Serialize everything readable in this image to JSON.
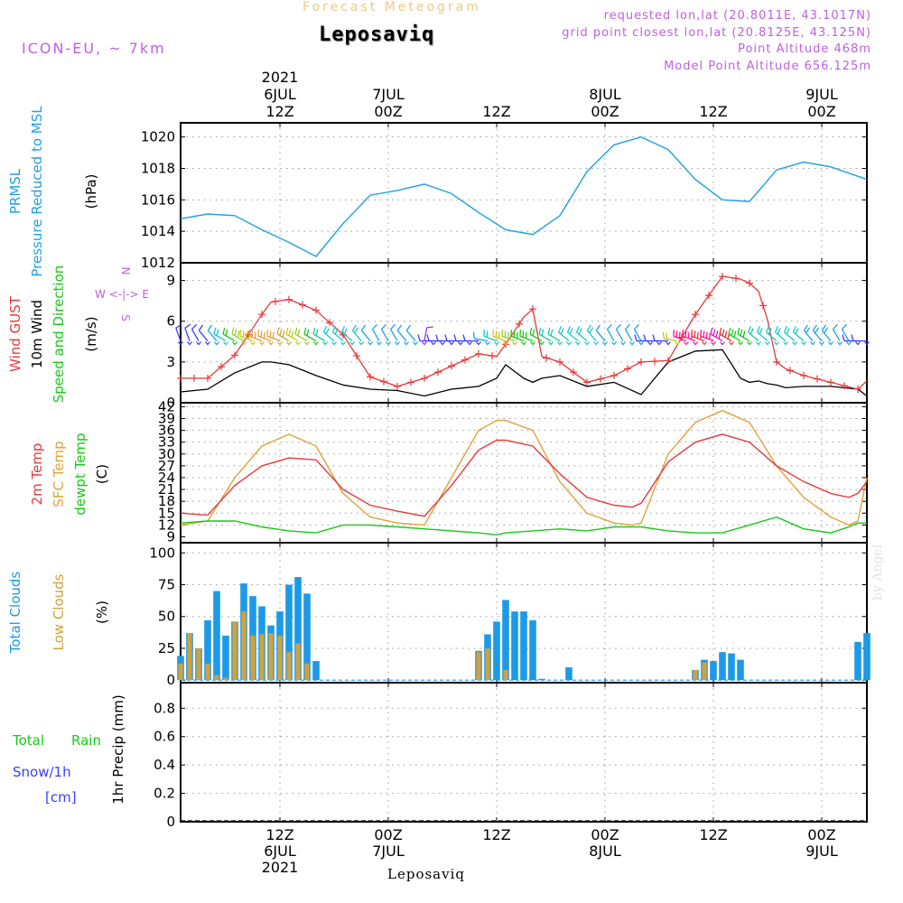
{
  "header": {
    "model": "ICON-EU, ~ 7km",
    "chart_title": "Forecast Meteogram",
    "place": "Leposaviq",
    "requested": "requested lon,lat (20.8011E, 43.1017N)",
    "grid_point": "grid point closest lon,lat (20.8125E, 43.125N)",
    "point_altitude": "Point Altitude 468m",
    "model_altitude": "Model Point Altitude 656.125m",
    "watermark": "by Angel"
  },
  "colors": {
    "pressure": "#1ea0e6",
    "gust": "#e8383a",
    "wind": "#000000",
    "temp": "#e8383a",
    "sfc": "#e0a23a",
    "dew": "#19c819",
    "total_clouds": "#1c9ae8",
    "low_clouds": "#d2a13c",
    "rain": "#19c819",
    "snow": "#3c3cff",
    "purple": "#bf5fdf"
  },
  "chart_data": [
    {
      "type": "line",
      "title": "PRMSL Pressure Reduced to MSL",
      "ylabel": "(hPa)",
      "ylim": [
        1012,
        1020.9
      ],
      "yticks": [
        1012,
        1014,
        1016,
        1018,
        1020
      ],
      "x_hours": [
        0,
        3,
        6,
        9,
        12,
        15,
        18,
        21,
        24,
        27,
        30,
        33,
        36,
        39,
        42,
        45,
        48,
        51,
        54,
        57,
        60,
        63,
        66,
        69,
        72,
        75,
        76
      ],
      "series": [
        {
          "name": "PRMSL",
          "values": [
            1014.8,
            1015.1,
            1015.0,
            1014.1,
            1013.3,
            1012.4,
            1014.5,
            1016.3,
            1016.6,
            1017.0,
            1016.4,
            1015.2,
            1014.1,
            1013.8,
            1015.0,
            1017.8,
            1019.5,
            1020.0,
            1019.2,
            1017.3,
            1016.0,
            1015.9,
            1017.9,
            1018.4,
            1018.1,
            1017.5,
            1017.3
          ]
        }
      ]
    },
    {
      "type": "line",
      "title": "Wind GUST / 10m Wind Speed and Direction",
      "ylabel": "(m/s)",
      "ylim": [
        0,
        10.3
      ],
      "yticks": [
        0,
        3,
        6,
        9
      ],
      "compass": [
        "N",
        "W <-|-> E",
        "S"
      ],
      "x_hours": [
        0,
        3,
        6,
        9,
        10,
        12,
        15,
        18,
        21,
        24,
        27,
        30,
        33,
        35,
        36,
        38,
        39,
        40,
        42,
        45,
        48,
        51,
        54,
        57,
        60,
        62,
        63,
        64,
        65,
        66,
        67,
        69,
        72,
        75,
        76
      ],
      "series": [
        {
          "name": "Wind GUST",
          "values": [
            1.8,
            1.8,
            3.5,
            6.5,
            7.4,
            7.6,
            6.8,
            5.0,
            1.9,
            1.2,
            1.8,
            2.7,
            3.6,
            3.4,
            4.3,
            6.3,
            6.9,
            3.4,
            3.0,
            1.5,
            2.0,
            3.0,
            3.1,
            6.5,
            9.3,
            9.1,
            8.8,
            8.2,
            6.1,
            3.0,
            2.5,
            2.0,
            1.5,
            1.0,
            1.6
          ]
        },
        {
          "name": "10m Wind",
          "values": [
            0.8,
            1.0,
            2.2,
            3.0,
            3.0,
            2.8,
            2.0,
            1.3,
            1.0,
            0.9,
            0.5,
            1.0,
            1.2,
            1.8,
            2.8,
            1.8,
            1.5,
            1.8,
            2.0,
            1.2,
            1.5,
            0.6,
            3.0,
            3.8,
            3.9,
            1.8,
            1.5,
            1.6,
            1.4,
            1.3,
            1.1,
            1.2,
            1.2,
            1.0,
            0.5
          ]
        }
      ],
      "barbs": [
        {
          "h": 0,
          "dir": 340,
          "spd": 1,
          "c": "#3c3cff"
        },
        {
          "h": 1,
          "dir": 340,
          "spd": 1,
          "c": "#3c3cff"
        },
        {
          "h": 2,
          "dir": 330,
          "spd": 1,
          "c": "#3c3cff"
        },
        {
          "h": 3,
          "dir": 320,
          "spd": 1,
          "c": "#3c3cff"
        },
        {
          "h": 4,
          "dir": 320,
          "spd": 1,
          "c": "#1ea0e6"
        },
        {
          "h": 5,
          "dir": 300,
          "spd": 2,
          "c": "#19c8c8"
        },
        {
          "h": 6,
          "dir": 300,
          "spd": 2,
          "c": "#19c819"
        },
        {
          "h": 7,
          "dir": 300,
          "spd": 3,
          "c": "#9acd32"
        },
        {
          "h": 8,
          "dir": 290,
          "spd": 3,
          "c": "#c8c819"
        },
        {
          "h": 9,
          "dir": 290,
          "spd": 3,
          "c": "#e0a23a"
        },
        {
          "h": 10,
          "dir": 290,
          "spd": 3,
          "c": "#e0a23a"
        },
        {
          "h": 11,
          "dir": 290,
          "spd": 3,
          "c": "#e0a23a"
        },
        {
          "h": 12,
          "dir": 300,
          "spd": 3,
          "c": "#d2a13c"
        },
        {
          "h": 13,
          "dir": 300,
          "spd": 3,
          "c": "#c8c819"
        },
        {
          "h": 14,
          "dir": 300,
          "spd": 2,
          "c": "#9acd32"
        },
        {
          "h": 15,
          "dir": 300,
          "spd": 2,
          "c": "#19c819"
        },
        {
          "h": 16,
          "dir": 300,
          "spd": 2,
          "c": "#19c8a0"
        },
        {
          "h": 17,
          "dir": 310,
          "spd": 2,
          "c": "#19c8c8"
        },
        {
          "h": 18,
          "dir": 310,
          "spd": 2,
          "c": "#19c8c8"
        },
        {
          "h": 19,
          "dir": 310,
          "spd": 2,
          "c": "#19c8c8"
        },
        {
          "h": 20,
          "dir": 320,
          "spd": 2,
          "c": "#19c8c8"
        },
        {
          "h": 21,
          "dir": 320,
          "spd": 1,
          "c": "#1ea0e6"
        },
        {
          "h": 22,
          "dir": 330,
          "spd": 1,
          "c": "#1ea0e6"
        },
        {
          "h": 23,
          "dir": 330,
          "spd": 1,
          "c": "#1ea0e6"
        },
        {
          "h": 24,
          "dir": 330,
          "spd": 1,
          "c": "#1ea0e6"
        },
        {
          "h": 25,
          "dir": 320,
          "spd": 1,
          "c": "#1ea0e6"
        },
        {
          "h": 26,
          "dir": 320,
          "spd": 1,
          "c": "#1ea0e6"
        },
        {
          "h": 27,
          "dir": 10,
          "spd": 1,
          "c": "#9b30ff"
        },
        {
          "h": 28,
          "dir": 270,
          "spd": 1,
          "c": "#3c3cff"
        },
        {
          "h": 29,
          "dir": 270,
          "spd": 1,
          "c": "#3c3cff"
        },
        {
          "h": 30,
          "dir": 270,
          "spd": 1,
          "c": "#3c3cff"
        },
        {
          "h": 31,
          "dir": 270,
          "spd": 1,
          "c": "#3c3cff"
        },
        {
          "h": 32,
          "dir": 270,
          "spd": 1,
          "c": "#3c3cff"
        },
        {
          "h": 33,
          "dir": 270,
          "spd": 1,
          "c": "#3c3cff"
        },
        {
          "h": 34,
          "dir": 280,
          "spd": 1,
          "c": "#1ea0e6"
        },
        {
          "h": 35,
          "dir": 290,
          "spd": 2,
          "c": "#19c8c8"
        },
        {
          "h": 36,
          "dir": 290,
          "spd": 3,
          "c": "#c8c819"
        },
        {
          "h": 37,
          "dir": 290,
          "spd": 3,
          "c": "#9acd32"
        },
        {
          "h": 38,
          "dir": 290,
          "spd": 3,
          "c": "#19c819"
        },
        {
          "h": 39,
          "dir": 290,
          "spd": 3,
          "c": "#19c819"
        },
        {
          "h": 40,
          "dir": 300,
          "spd": 2,
          "c": "#19c819"
        },
        {
          "h": 41,
          "dir": 300,
          "spd": 2,
          "c": "#19c8a0"
        },
        {
          "h": 42,
          "dir": 300,
          "spd": 2,
          "c": "#19c8a0"
        },
        {
          "h": 43,
          "dir": 310,
          "spd": 2,
          "c": "#19c8c8"
        },
        {
          "h": 44,
          "dir": 310,
          "spd": 2,
          "c": "#19c8c8"
        },
        {
          "h": 45,
          "dir": 310,
          "spd": 2,
          "c": "#19c8c8"
        },
        {
          "h": 46,
          "dir": 320,
          "spd": 2,
          "c": "#19c8c8"
        },
        {
          "h": 47,
          "dir": 320,
          "spd": 1,
          "c": "#1ea0e6"
        },
        {
          "h": 48,
          "dir": 330,
          "spd": 1,
          "c": "#1ea0e6"
        },
        {
          "h": 49,
          "dir": 330,
          "spd": 1,
          "c": "#1ea0e6"
        },
        {
          "h": 50,
          "dir": 330,
          "spd": 1,
          "c": "#1ea0e6"
        },
        {
          "h": 51,
          "dir": 330,
          "spd": 1,
          "c": "#1ea0e6"
        },
        {
          "h": 52,
          "dir": 270,
          "spd": 1,
          "c": "#3c3cff"
        },
        {
          "h": 53,
          "dir": 270,
          "spd": 1,
          "c": "#3c3cff"
        },
        {
          "h": 54,
          "dir": 270,
          "spd": 1,
          "c": "#3c3cff"
        },
        {
          "h": 55,
          "dir": 280,
          "spd": 2,
          "c": "#c8c819"
        },
        {
          "h": 56,
          "dir": 290,
          "spd": 3,
          "c": "#ff1493"
        },
        {
          "h": 57,
          "dir": 290,
          "spd": 4,
          "c": "#ff1493"
        },
        {
          "h": 58,
          "dir": 290,
          "spd": 4,
          "c": "#e8383a"
        },
        {
          "h": 59,
          "dir": 290,
          "spd": 4,
          "c": "#ff1493"
        },
        {
          "h": 60,
          "dir": 300,
          "spd": 4,
          "c": "#c820c8"
        },
        {
          "h": 61,
          "dir": 300,
          "spd": 4,
          "c": "#e8383a"
        },
        {
          "h": 62,
          "dir": 300,
          "spd": 3,
          "c": "#19c819"
        },
        {
          "h": 63,
          "dir": 300,
          "spd": 3,
          "c": "#19c819"
        },
        {
          "h": 64,
          "dir": 310,
          "spd": 2,
          "c": "#19c8a0"
        },
        {
          "h": 65,
          "dir": 310,
          "spd": 2,
          "c": "#19c8c8"
        },
        {
          "h": 66,
          "dir": 310,
          "spd": 2,
          "c": "#19c8c8"
        },
        {
          "h": 67,
          "dir": 310,
          "spd": 2,
          "c": "#19c8c8"
        },
        {
          "h": 68,
          "dir": 310,
          "spd": 2,
          "c": "#19c8c8"
        },
        {
          "h": 69,
          "dir": 310,
          "spd": 2,
          "c": "#19c8c8"
        },
        {
          "h": 70,
          "dir": 320,
          "spd": 2,
          "c": "#1ea0e6"
        },
        {
          "h": 71,
          "dir": 320,
          "spd": 2,
          "c": "#1ea0e6"
        },
        {
          "h": 72,
          "dir": 320,
          "spd": 2,
          "c": "#1ea0e6"
        },
        {
          "h": 73,
          "dir": 330,
          "spd": 1,
          "c": "#1ea0e6"
        },
        {
          "h": 74,
          "dir": 330,
          "spd": 1,
          "c": "#1ea0e6"
        },
        {
          "h": 75,
          "dir": 270,
          "spd": 1,
          "c": "#3c3cff"
        },
        {
          "h": 76,
          "dir": 270,
          "spd": 1,
          "c": "#3c3cff"
        }
      ]
    },
    {
      "type": "line",
      "title": "2m Temp / SFC Temp / dewpt Temp",
      "ylabel": "(C)",
      "ylim": [
        7.5,
        43
      ],
      "yticks": [
        9,
        12,
        15,
        18,
        21,
        24,
        27,
        30,
        33,
        36,
        39,
        42
      ],
      "x_hours": [
        0,
        3,
        6,
        9,
        12,
        15,
        18,
        21,
        24,
        27,
        30,
        33,
        35,
        36,
        39,
        42,
        45,
        48,
        50,
        51,
        54,
        57,
        60,
        63,
        66,
        69,
        72,
        74,
        75,
        76
      ],
      "series": [
        {
          "name": "2m Temp",
          "values": [
            15,
            14.5,
            22,
            27,
            29,
            28.5,
            21,
            17,
            15.5,
            14.2,
            22,
            31,
            33.5,
            33.5,
            32,
            25,
            19,
            17,
            16.5,
            17.5,
            28,
            33,
            35,
            33,
            27,
            23,
            20,
            19,
            20,
            23
          ]
        },
        {
          "name": "SFC Temp",
          "values": [
            12,
            13,
            24,
            32,
            35,
            32,
            20,
            14,
            12.5,
            12,
            24,
            36,
            38.5,
            38.5,
            36,
            23,
            15,
            12.5,
            12,
            12.5,
            30,
            38,
            41,
            38,
            27,
            19,
            14,
            12,
            13,
            24
          ]
        },
        {
          "name": "dewpt Temp",
          "values": [
            12.5,
            13,
            13,
            11.5,
            10.5,
            10,
            12,
            12,
            11.5,
            11,
            10.5,
            10,
            9.5,
            10,
            10.5,
            11,
            10.5,
            11.5,
            11.5,
            11.5,
            10.5,
            10,
            10,
            12,
            14,
            11,
            10,
            11.5,
            12.5,
            12.5
          ]
        }
      ]
    },
    {
      "type": "bar",
      "title": "Total Clouds / Low Clouds",
      "ylabel": "(%)",
      "ylim": [
        -2,
        108
      ],
      "yticks": [
        0,
        25,
        50,
        75,
        100
      ],
      "hours": [
        0,
        1,
        2,
        3,
        4,
        5,
        6,
        7,
        8,
        9,
        10,
        11,
        12,
        13,
        14,
        15,
        33,
        34,
        35,
        36,
        37,
        38,
        39,
        40,
        43,
        57,
        58,
        59,
        60,
        61,
        62,
        75,
        76
      ],
      "series": [
        {
          "name": "Total Clouds",
          "values": [
            19,
            37,
            25,
            47,
            70,
            35,
            46,
            76,
            66,
            58,
            43,
            54,
            75,
            81,
            68,
            15,
            23,
            36,
            46,
            63,
            54,
            54,
            47,
            1,
            10,
            8,
            16,
            15,
            22,
            21,
            16,
            30,
            37
          ]
        },
        {
          "name": "Low Clouds",
          "values": [
            13,
            37,
            25,
            13,
            4,
            2,
            46,
            54,
            35,
            36,
            37,
            35,
            22,
            29,
            13,
            0,
            22,
            25,
            0,
            8,
            0,
            0,
            0,
            0,
            0,
            8,
            14,
            0,
            0,
            0,
            0,
            0,
            0
          ]
        }
      ]
    },
    {
      "type": "bar",
      "title": "1hr Precip (mm) - Total Rain, Snow/1h [cm]",
      "ylabel": "1hr Precip (mm)",
      "ylim": [
        0,
        0.98
      ],
      "yticks": [
        0,
        0.2,
        0.4,
        0.6,
        0.8
      ],
      "ytick_labels": [
        "0",
        "0.2",
        "0.4",
        "0.6",
        "0.8"
      ],
      "legend": [
        "Total",
        "Rain",
        "Snow/1h",
        "[cm]"
      ],
      "series": [
        {
          "name": "Total Rain",
          "values": []
        },
        {
          "name": "Snow/1h",
          "values": []
        }
      ]
    }
  ],
  "time_axis": {
    "hours_range": [
      -11,
      65
    ],
    "ticks": [
      0,
      12,
      24,
      36,
      48,
      60
    ],
    "top": [
      {
        "l1": "2021",
        "l2": "6JUL",
        "l3": "12Z"
      },
      {
        "l1": "",
        "l2": "7JUL",
        "l3": "00Z"
      },
      {
        "l1": "",
        "l2": "",
        "l3": "12Z"
      },
      {
        "l1": "",
        "l2": "8JUL",
        "l3": "00Z"
      },
      {
        "l1": "",
        "l2": "",
        "l3": "12Z"
      },
      {
        "l1": "",
        "l2": "9JUL",
        "l3": "00Z"
      }
    ],
    "bottom": [
      {
        "l1": "12Z",
        "l2": "6JUL",
        "l3": "2021"
      },
      {
        "l1": "00Z",
        "l2": "7JUL",
        "l3": ""
      },
      {
        "l1": "12Z",
        "l2": "",
        "l3": ""
      },
      {
        "l1": "00Z",
        "l2": "8JUL",
        "l3": ""
      },
      {
        "l1": "12Z",
        "l2": "",
        "l3": ""
      },
      {
        "l1": "00Z",
        "l2": "9JUL",
        "l3": ""
      }
    ],
    "bottom_place": "Leposaviq"
  },
  "panel_labels": {
    "pressure": [
      "PRMSL",
      "Pressure Reduced to MSL"
    ],
    "wind": [
      "Wind GUST",
      "10m Wind",
      "Speed and Direction"
    ],
    "temp": [
      "2m Temp",
      "SFC Temp",
      "dewpt Temp"
    ],
    "clouds": [
      "Total Clouds",
      "Low Clouds"
    ],
    "precip_left": [
      "Total",
      "Rain",
      "Snow/1h",
      "[cm]"
    ]
  }
}
